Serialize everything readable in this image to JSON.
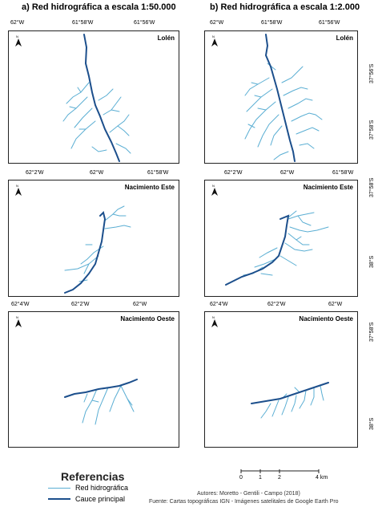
{
  "titles": {
    "left": "a) Red hidrográfica a escala 1:50.000",
    "right": "b) Red hidrográfica a escala 1:2.000"
  },
  "north_label": "N",
  "colors": {
    "tributary": "#5aaed3",
    "main_channel": "#1c4f8c",
    "frame": "#222222"
  },
  "panels": [
    {
      "name": "Lolén",
      "top_ticks": [
        "62°W",
        "61°58'W",
        "61°56'W"
      ],
      "bottom_ticks": [
        "62°2'W",
        "62°W",
        "61°58'W"
      ],
      "right_ticks": [
        "37°56'S",
        "37°58'S"
      ]
    },
    {
      "name": "Nacimiento Este",
      "bottom_ticks": [
        "62°4'W",
        "62°2'W",
        "62°W"
      ],
      "right_ticks": [
        "37°58'S",
        "38°S"
      ]
    },
    {
      "name": "Nacimiento Oeste",
      "right_ticks": [
        "37°58'S",
        "38°S"
      ]
    }
  ],
  "legend": {
    "title": "Referencias",
    "items": [
      {
        "label": "Red hidrográfica"
      },
      {
        "label": "Cauce principal"
      }
    ]
  },
  "scale_bar": {
    "labels": [
      "0",
      "1",
      "2",
      "4 km"
    ]
  },
  "credits": {
    "authors": "Autores: Moretto - Gentili - Campo (2018)",
    "source": "Fuente: Cartas topográficas IGN - Imágenes satelitales de Google Earth Pro"
  }
}
